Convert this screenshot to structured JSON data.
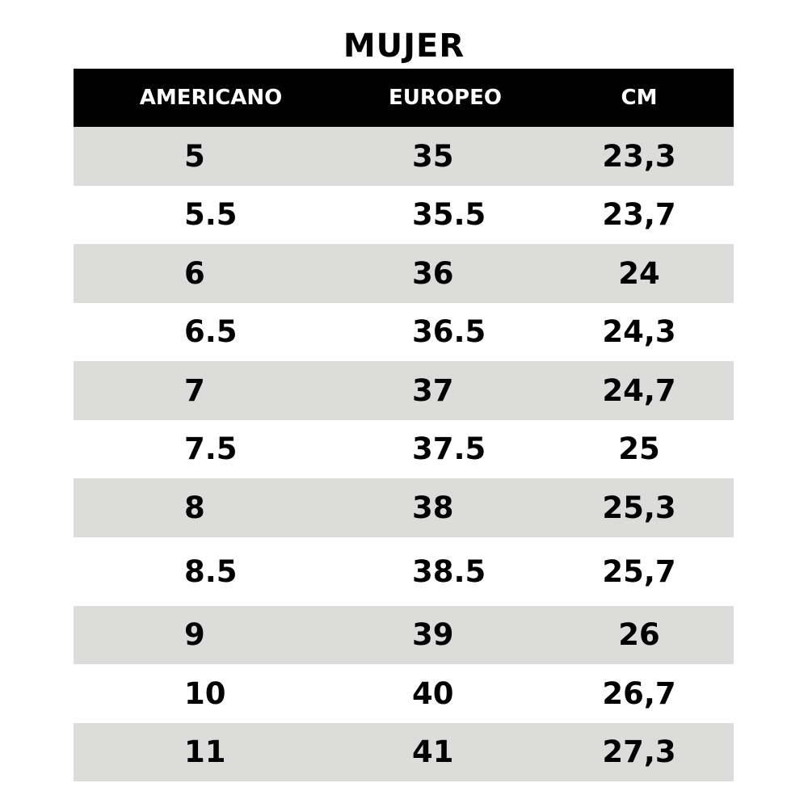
{
  "title": "MUJER",
  "columns": [
    "AMERICANO",
    "EUROPEO",
    "CM"
  ],
  "rows": [
    [
      "5",
      "35",
      "23,3"
    ],
    [
      "5.5",
      "35.5",
      "23,7"
    ],
    [
      "6",
      "36",
      "24"
    ],
    [
      "6.5",
      "36.5",
      "24,3"
    ],
    [
      "7",
      "37",
      "24,7"
    ],
    [
      "7.5",
      "37.5",
      "25"
    ],
    [
      "8",
      "38",
      "25,3"
    ],
    [
      "8.5",
      "38.5",
      "25,7"
    ],
    [
      "9",
      "39",
      "26"
    ],
    [
      "10",
      "40",
      "26,7"
    ],
    [
      "11",
      "41",
      "27,3"
    ]
  ],
  "colors": {
    "header_bg": "#000000",
    "header_text": "#ffffff",
    "stripe": "#dcdddb"
  }
}
